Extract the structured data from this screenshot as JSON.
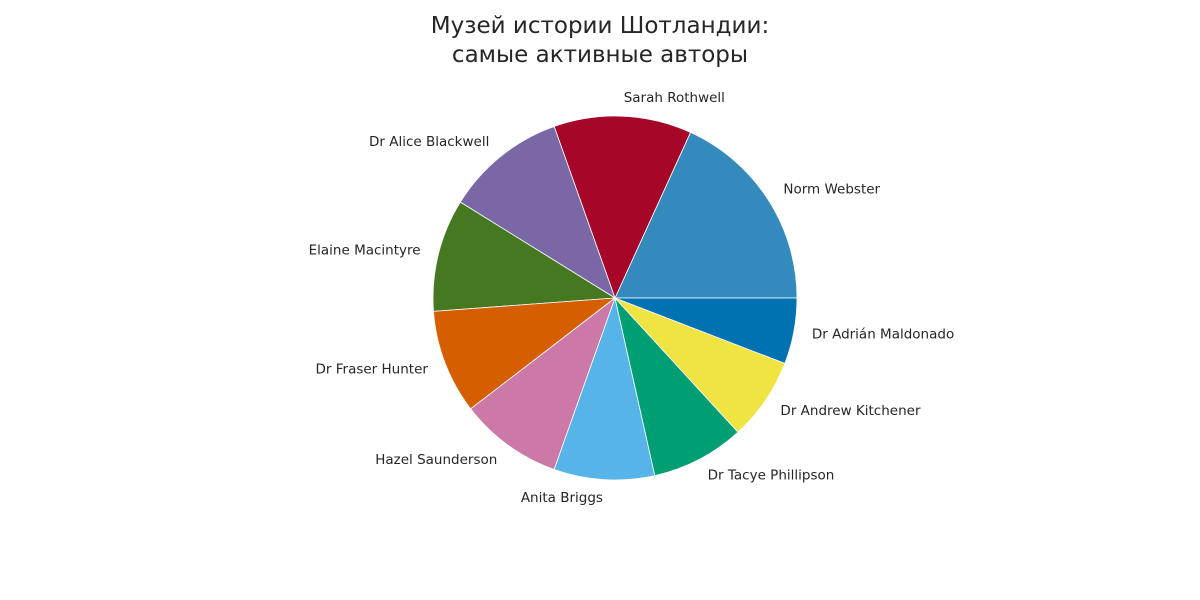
{
  "chart_data": {
    "type": "pie",
    "title_lines": [
      "Музей истории Шотландии:",
      "самые активные авторы"
    ],
    "slices": [
      {
        "label": "Norm Webster",
        "value": 17.1,
        "color": "#348abd"
      },
      {
        "label": "Sarah Rothwell",
        "value": 11.5,
        "color": "#a60628"
      },
      {
        "label": "Dr Alice Blackwell",
        "value": 10.1,
        "color": "#7a68a6"
      },
      {
        "label": "Elaine Macintyre",
        "value": 9.4,
        "color": "#467821"
      },
      {
        "label": "Dr Fraser Hunter",
        "value": 8.7,
        "color": "#d55e00"
      },
      {
        "label": "Hazel Saunderson",
        "value": 8.6,
        "color": "#cc79a7"
      },
      {
        "label": "Anita Briggs",
        "value": 8.4,
        "color": "#56b4e9"
      },
      {
        "label": "Dr Tacye Phillipson",
        "value": 7.8,
        "color": "#009e73"
      },
      {
        "label": "Dr Andrew Kitchener",
        "value": 6.9,
        "color": "#f0e442"
      },
      {
        "label": "Dr Adrián Maldonado",
        "value": 5.5,
        "color": "#0072b2"
      }
    ],
    "start_angle": "0 degrees (3 o'clock)",
    "direction": "counterclockwise",
    "legend": "none",
    "grid": false
  }
}
